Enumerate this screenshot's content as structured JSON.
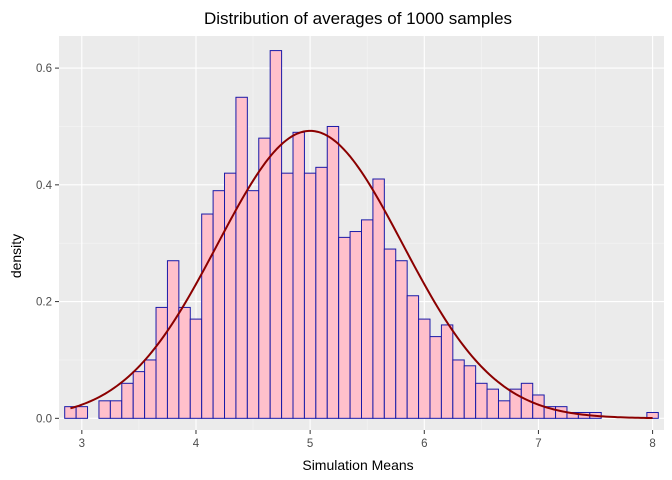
{
  "chart_data": {
    "type": "bar",
    "title": "Distribution of averages of 1000 samples",
    "xlabel": "Simulation Means",
    "ylabel": "density",
    "xlim": [
      2.8,
      8.1
    ],
    "ylim": [
      -0.02,
      0.655
    ],
    "x_ticks": [
      3,
      4,
      5,
      6,
      7,
      8
    ],
    "y_ticks": [
      0.0,
      0.2,
      0.4,
      0.6
    ],
    "y_tick_labels": [
      "0.0",
      "0.2",
      "0.4",
      "0.6"
    ],
    "bin_width": 0.1,
    "grid": true,
    "bin_centers": [
      2.9,
      3.0,
      3.1,
      3.2,
      3.3,
      3.4,
      3.5,
      3.6,
      3.7,
      3.8,
      3.9,
      4.0,
      4.1,
      4.2,
      4.3,
      4.4,
      4.5,
      4.6,
      4.7,
      4.8,
      4.9,
      5.0,
      5.1,
      5.2,
      5.3,
      5.4,
      5.5,
      5.6,
      5.7,
      5.8,
      5.9,
      6.0,
      6.1,
      6.2,
      6.3,
      6.4,
      6.5,
      6.6,
      6.7,
      6.8,
      6.9,
      7.0,
      7.1,
      7.2,
      7.3,
      7.4,
      7.5,
      7.6,
      7.7,
      7.8,
      7.9,
      8.0
    ],
    "values": [
      0.02,
      0.02,
      0.0,
      0.03,
      0.03,
      0.06,
      0.08,
      0.1,
      0.19,
      0.27,
      0.19,
      0.17,
      0.35,
      0.39,
      0.42,
      0.55,
      0.39,
      0.48,
      0.63,
      0.42,
      0.49,
      0.42,
      0.43,
      0.5,
      0.31,
      0.32,
      0.34,
      0.41,
      0.29,
      0.27,
      0.21,
      0.17,
      0.14,
      0.16,
      0.1,
      0.09,
      0.06,
      0.05,
      0.03,
      0.05,
      0.06,
      0.04,
      0.02,
      0.02,
      0.01,
      0.01,
      0.01,
      0.0,
      0.0,
      0.0,
      0.0,
      0.01
    ],
    "density_curve": {
      "type": "normal",
      "mean": 5.0,
      "sd": 0.81,
      "x_range": [
        2.9,
        8.0
      ],
      "color": "#8b0000"
    },
    "colors": {
      "panel_background": "#ebebeb",
      "bar_fill": "#ffc0cb",
      "bar_outline": "#1a1aa8"
    }
  }
}
